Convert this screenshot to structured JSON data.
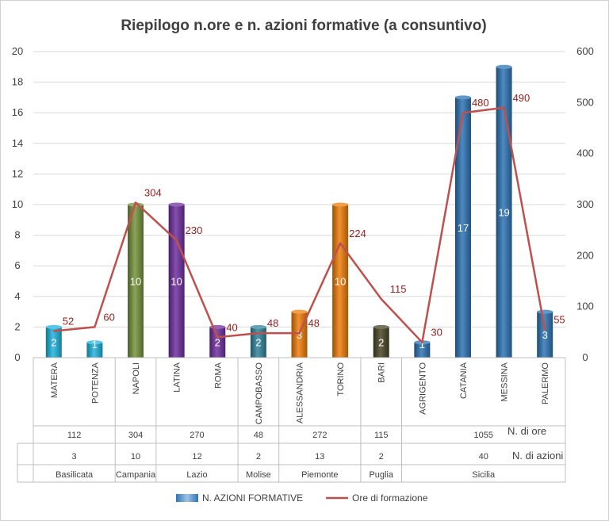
{
  "chart_data": {
    "type": "bar",
    "title": "Riepilogo n.ore e n. azioni formative (a consuntivo)",
    "categories": [
      "MATERA",
      "POTENZA",
      "NAPOLI",
      "LATINA",
      "ROMA",
      "CAMPOBASSO",
      "ALESSANDRIA",
      "TORINO",
      "BARI",
      "AGRIGENTO",
      "CATANIA",
      "MESSINA",
      "PALERMO"
    ],
    "series": [
      {
        "name": "N. AZIONI FORMATIVE",
        "axis": "left",
        "values": [
          2,
          1,
          10,
          10,
          2,
          2,
          3,
          10,
          2,
          1,
          17,
          19,
          3
        ],
        "colors": [
          "#1fb5de",
          "#1fb5de",
          "#77933c",
          "#7030a0",
          "#7030a0",
          "#31859c",
          "#f07d0a",
          "#f07d0a",
          "#4a4626",
          "#2e75b6",
          "#2e75b6",
          "#2e75b6",
          "#2e75b6"
        ]
      },
      {
        "name": "Ore di formazione",
        "axis": "right",
        "values": [
          52,
          60,
          304,
          230,
          40,
          48,
          48,
          224,
          115,
          30,
          480,
          490,
          55
        ],
        "color": "#c0504d"
      }
    ],
    "y_left": {
      "min": 0,
      "max": 20,
      "step": 2
    },
    "y_right": {
      "min": 0,
      "max": 600,
      "step": 100
    },
    "regions": [
      {
        "name": "Basilicata",
        "span": 2,
        "ore": "112",
        "azioni": "3"
      },
      {
        "name": "Campania",
        "span": 1,
        "ore": "304",
        "azioni": "10"
      },
      {
        "name": "Lazio",
        "span": 2,
        "ore": "270",
        "azioni": "12"
      },
      {
        "name": "Molise",
        "span": 1,
        "ore": "48",
        "azioni": "2"
      },
      {
        "name": "Piemonte",
        "span": 2,
        "ore": "272",
        "azioni": "13"
      },
      {
        "name": "Puglia",
        "span": 1,
        "ore": "115",
        "azioni": "2"
      },
      {
        "name": "Sicilia",
        "span": 4,
        "ore": "1055",
        "azioni": "40"
      }
    ],
    "table_row_labels": {
      "ore": "N. di ore",
      "azioni": "N. di azioni"
    },
    "gridlines": true,
    "legend_position": "bottom"
  }
}
